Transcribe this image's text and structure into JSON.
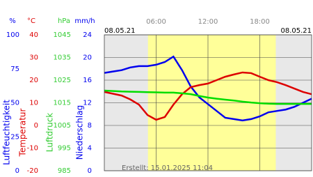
{
  "chart_data": {
    "type": "line",
    "date_left": "08.05.21",
    "date_right": "08.05.21",
    "footer": "Erstellt: 15.01.2025 11:04",
    "xlim": [
      0,
      24
    ],
    "xticks": [
      {
        "value": 6,
        "label": "06:00"
      },
      {
        "value": 12,
        "label": "12:00"
      },
      {
        "value": 18,
        "label": "18:00"
      }
    ],
    "daylight": [
      5.05,
      19.85
    ],
    "grid": true,
    "axes": [
      {
        "id": "hum",
        "unit": "%",
        "label": "Luftfeuchtigkeit",
        "color": "#0000ee",
        "ylim": [
          0,
          100
        ],
        "yticks": [
          0,
          25,
          50,
          75,
          100
        ]
      },
      {
        "id": "temp",
        "unit": "°C",
        "label": "Temperatur",
        "color": "#dd0000",
        "ylim": [
          -20,
          40
        ],
        "yticks": [
          -20,
          -10,
          0,
          10,
          20,
          30,
          40
        ]
      },
      {
        "id": "pres",
        "unit": "hPa",
        "label": "Luftdruck",
        "color": "#33cc33",
        "ylim": [
          985,
          1045
        ],
        "yticks": [
          985,
          995,
          1005,
          1015,
          1025,
          1035,
          1045
        ]
      },
      {
        "id": "rain",
        "unit": "mm/h",
        "label": "Niederschlag",
        "color": "#0000ee",
        "ylim": [
          0,
          24
        ],
        "yticks": [
          0,
          4,
          8,
          12,
          16,
          20,
          24
        ]
      }
    ],
    "x": [
      0,
      1,
      2,
      3,
      4,
      5,
      6,
      7,
      8,
      9,
      10,
      11,
      12,
      13,
      14,
      15,
      16,
      17,
      18,
      19,
      20,
      21,
      22,
      23,
      24
    ],
    "series": [
      {
        "name": "Luftfeuchtigkeit",
        "axis": "hum",
        "color": "#0000ee",
        "values": [
          72,
          73,
          74,
          76,
          77,
          77,
          78,
          80,
          84,
          74,
          62,
          54,
          49,
          44,
          39,
          38,
          37,
          38,
          40,
          43,
          44,
          45,
          47,
          50,
          53
        ]
      },
      {
        "name": "Temperatur",
        "axis": "temp",
        "color": "#dd0000",
        "values": [
          14.8,
          14,
          13.2,
          11.5,
          9.2,
          4.6,
          2.5,
          3.7,
          9.2,
          13.8,
          16.9,
          17.8,
          18.5,
          20,
          21.5,
          22.5,
          23.4,
          23.1,
          21.5,
          20,
          19.1,
          17.8,
          16.3,
          14.8,
          13.8
        ]
      },
      {
        "name": "Luftdruck",
        "axis": "pres",
        "color": "#00dd00",
        "values": [
          1020.4,
          1020.2,
          1020,
          1019.9,
          1019.8,
          1019.7,
          1019.6,
          1019.5,
          1019.5,
          1019.2,
          1018.8,
          1018,
          1017.3,
          1016.8,
          1016.4,
          1016,
          1015.5,
          1015.1,
          1014.8,
          1014.6,
          1014.5,
          1014.5,
          1014.5,
          1014.5,
          1014.5
        ]
      }
    ]
  }
}
